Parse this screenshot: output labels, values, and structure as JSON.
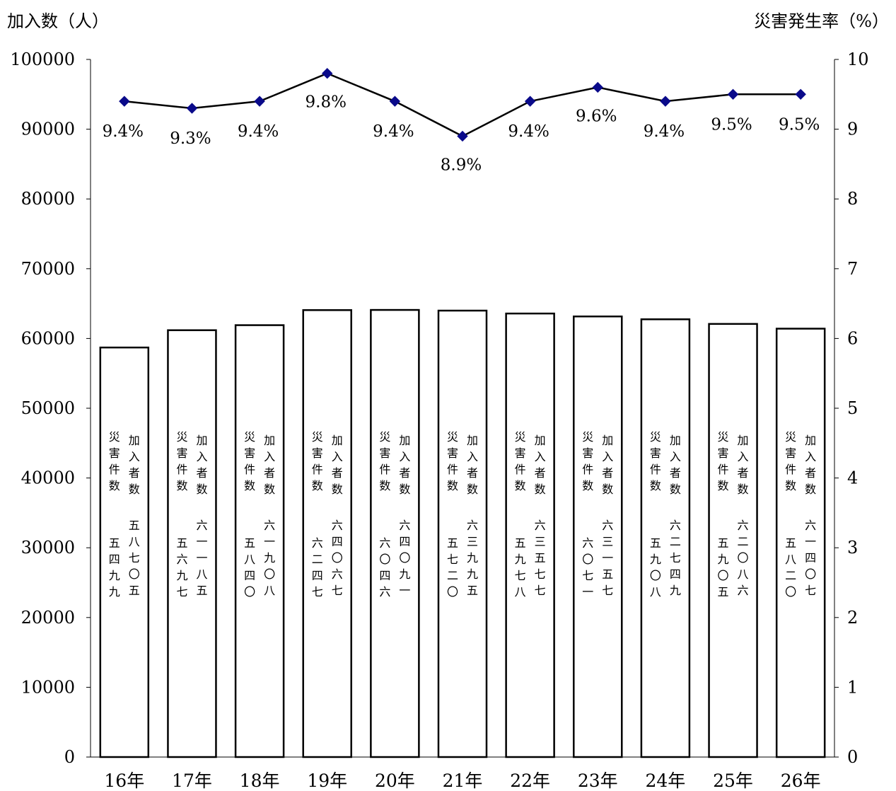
{
  "chart_data": {
    "type": "bar",
    "categories": [
      "16年",
      "17年",
      "18年",
      "19年",
      "20年",
      "21年",
      "22年",
      "23年",
      "24年",
      "25年",
      "26年"
    ],
    "y_left_label": "加入数（人）",
    "y_right_label": "災害発生率（%）",
    "y_left_ticks": [
      "0",
      "10000",
      "20000",
      "30000",
      "40000",
      "50000",
      "60000",
      "70000",
      "80000",
      "90000",
      "100000"
    ],
    "y_right_ticks": [
      "0",
      "1",
      "2",
      "3",
      "4",
      "5",
      "6",
      "7",
      "8",
      "9",
      "10"
    ],
    "ylim_left": [
      0,
      100000
    ],
    "ylim_right": [
      0,
      10
    ],
    "series": [
      {
        "name": "加入者数",
        "type": "bar",
        "axis": "left",
        "values": [
          58705,
          61185,
          61908,
          64067,
          64091,
          63995,
          63577,
          63157,
          62749,
          62086,
          61407
        ],
        "labels": [
          "五八七〇五",
          "六一一八五",
          "六一九〇八",
          "六四〇六七",
          "六四〇九一",
          "六三九九五",
          "六三五七七",
          "六三一五七",
          "六二七四九",
          "六二〇八六",
          "六一四〇七"
        ]
      },
      {
        "name": "災害件数",
        "type": "text",
        "values": [
          5499,
          5697,
          5840,
          6247,
          6046,
          5720,
          5978,
          6071,
          5908,
          5905,
          5820
        ],
        "labels": [
          "五四九九",
          "五六九七",
          "五八四〇",
          "六二四七",
          "六〇四六",
          "五七二〇",
          "五九七八",
          "六〇七一",
          "五九〇八",
          "五九〇五",
          "五八二〇"
        ]
      },
      {
        "name": "災害発生率",
        "type": "line",
        "axis": "right",
        "values": [
          9.4,
          9.3,
          9.4,
          9.8,
          9.4,
          8.9,
          9.4,
          9.6,
          9.4,
          9.5,
          9.5
        ],
        "labels": [
          "9.4%",
          "9.3%",
          "9.4%",
          "9.8%",
          "9.4%",
          "8.9%",
          "9.4%",
          "9.6%",
          "9.4%",
          "9.5%",
          "9.5%"
        ]
      }
    ],
    "grid": false,
    "legend": "none",
    "colors": {
      "bar_fill": "#ffffff",
      "bar_stroke": "#000000",
      "line": "#000000",
      "marker": "#0a0a8a"
    }
  }
}
